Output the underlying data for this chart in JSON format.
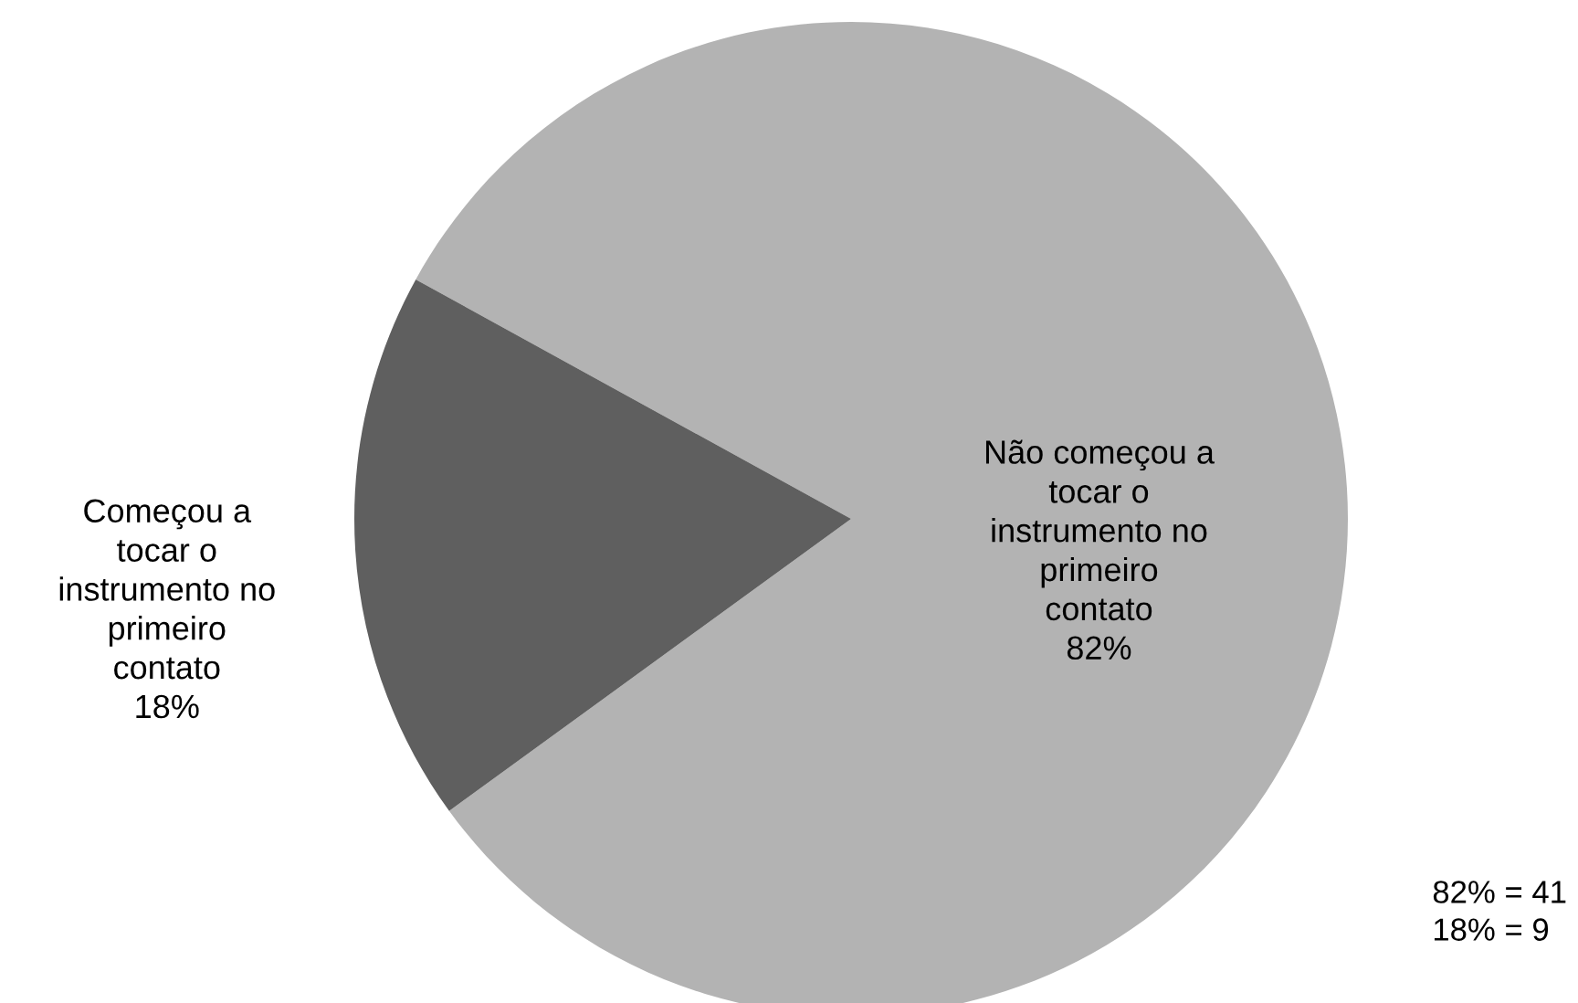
{
  "chart_data": {
    "type": "pie",
    "categories": [
      "Não começou a\ntocar o\ninstrumento no\nprimeiro\ncontato",
      "Começou a\ntocar o\ninstrumento no\nprimeiro\ncontato"
    ],
    "values": [
      82,
      18
    ],
    "colors": [
      "#b3b3b3",
      "#5f5f5f"
    ],
    "value_labels": [
      "82%",
      "18%"
    ],
    "annotations": [
      "82% = 41\n18% = 9"
    ],
    "legend": false
  }
}
